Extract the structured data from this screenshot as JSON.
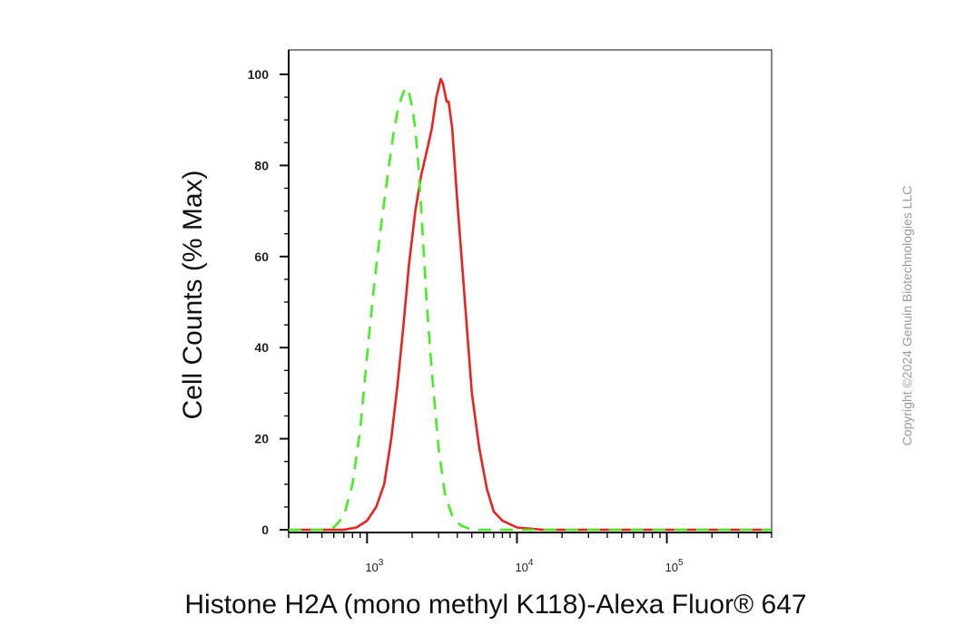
{
  "watermark": "Copyright ©2024 Genuin Biotechnologies LLC",
  "chart_data": {
    "type": "line",
    "title": "",
    "xlabel": "Histone H2A (mono methyl K118)-Alexa Fluor® 647",
    "ylabel": "Cell Counts (% Max)",
    "x_scale": "log",
    "xlim": [
      300,
      500000
    ],
    "ylim": [
      -2,
      105
    ],
    "y_ticks": [
      0,
      20,
      40,
      60,
      80,
      100
    ],
    "x_ticks": [
      {
        "value": 1000,
        "base": "10",
        "exp": "3"
      },
      {
        "value": 10000,
        "base": "10",
        "exp": "4"
      },
      {
        "value": 100000,
        "base": "10",
        "exp": "5"
      }
    ],
    "grid": false,
    "legend": "none",
    "series": [
      {
        "color": "#ee2020",
        "style": "solid",
        "x": [
          300,
          500,
          700,
          850,
          1000,
          1150,
          1300,
          1450,
          1600,
          1750,
          1900,
          2100,
          2300,
          2500,
          2700,
          2900,
          3000,
          3100,
          3200,
          3300,
          3400,
          3500,
          3700,
          4000,
          4500,
          5000,
          5600,
          6300,
          7000,
          8000,
          10000,
          15000,
          100000,
          500000
        ],
        "y": [
          0,
          0,
          0,
          0.5,
          2,
          5,
          10,
          20,
          32,
          45,
          58,
          70,
          78,
          83,
          88,
          95,
          97,
          99,
          98,
          96,
          94,
          94,
          88,
          72,
          50,
          30,
          18,
          9,
          4,
          2,
          0.5,
          0,
          0,
          0
        ]
      },
      {
        "color": "#44ee22",
        "style": "dashed",
        "x": [
          300,
          500,
          600,
          700,
          800,
          900,
          1000,
          1100,
          1200,
          1300,
          1400,
          1500,
          1600,
          1700,
          1800,
          1850,
          1900,
          2000,
          2100,
          2200,
          2300,
          2400,
          2500,
          2700,
          3000,
          3300,
          3700,
          4200,
          5000,
          10000,
          500000
        ],
        "y": [
          0,
          0,
          0.5,
          3,
          10,
          22,
          38,
          52,
          63,
          72,
          80,
          87,
          92,
          95,
          97,
          97,
          96,
          93,
          88,
          80,
          70,
          60,
          50,
          35,
          18,
          8,
          3,
          1,
          0,
          0,
          0
        ]
      }
    ]
  }
}
